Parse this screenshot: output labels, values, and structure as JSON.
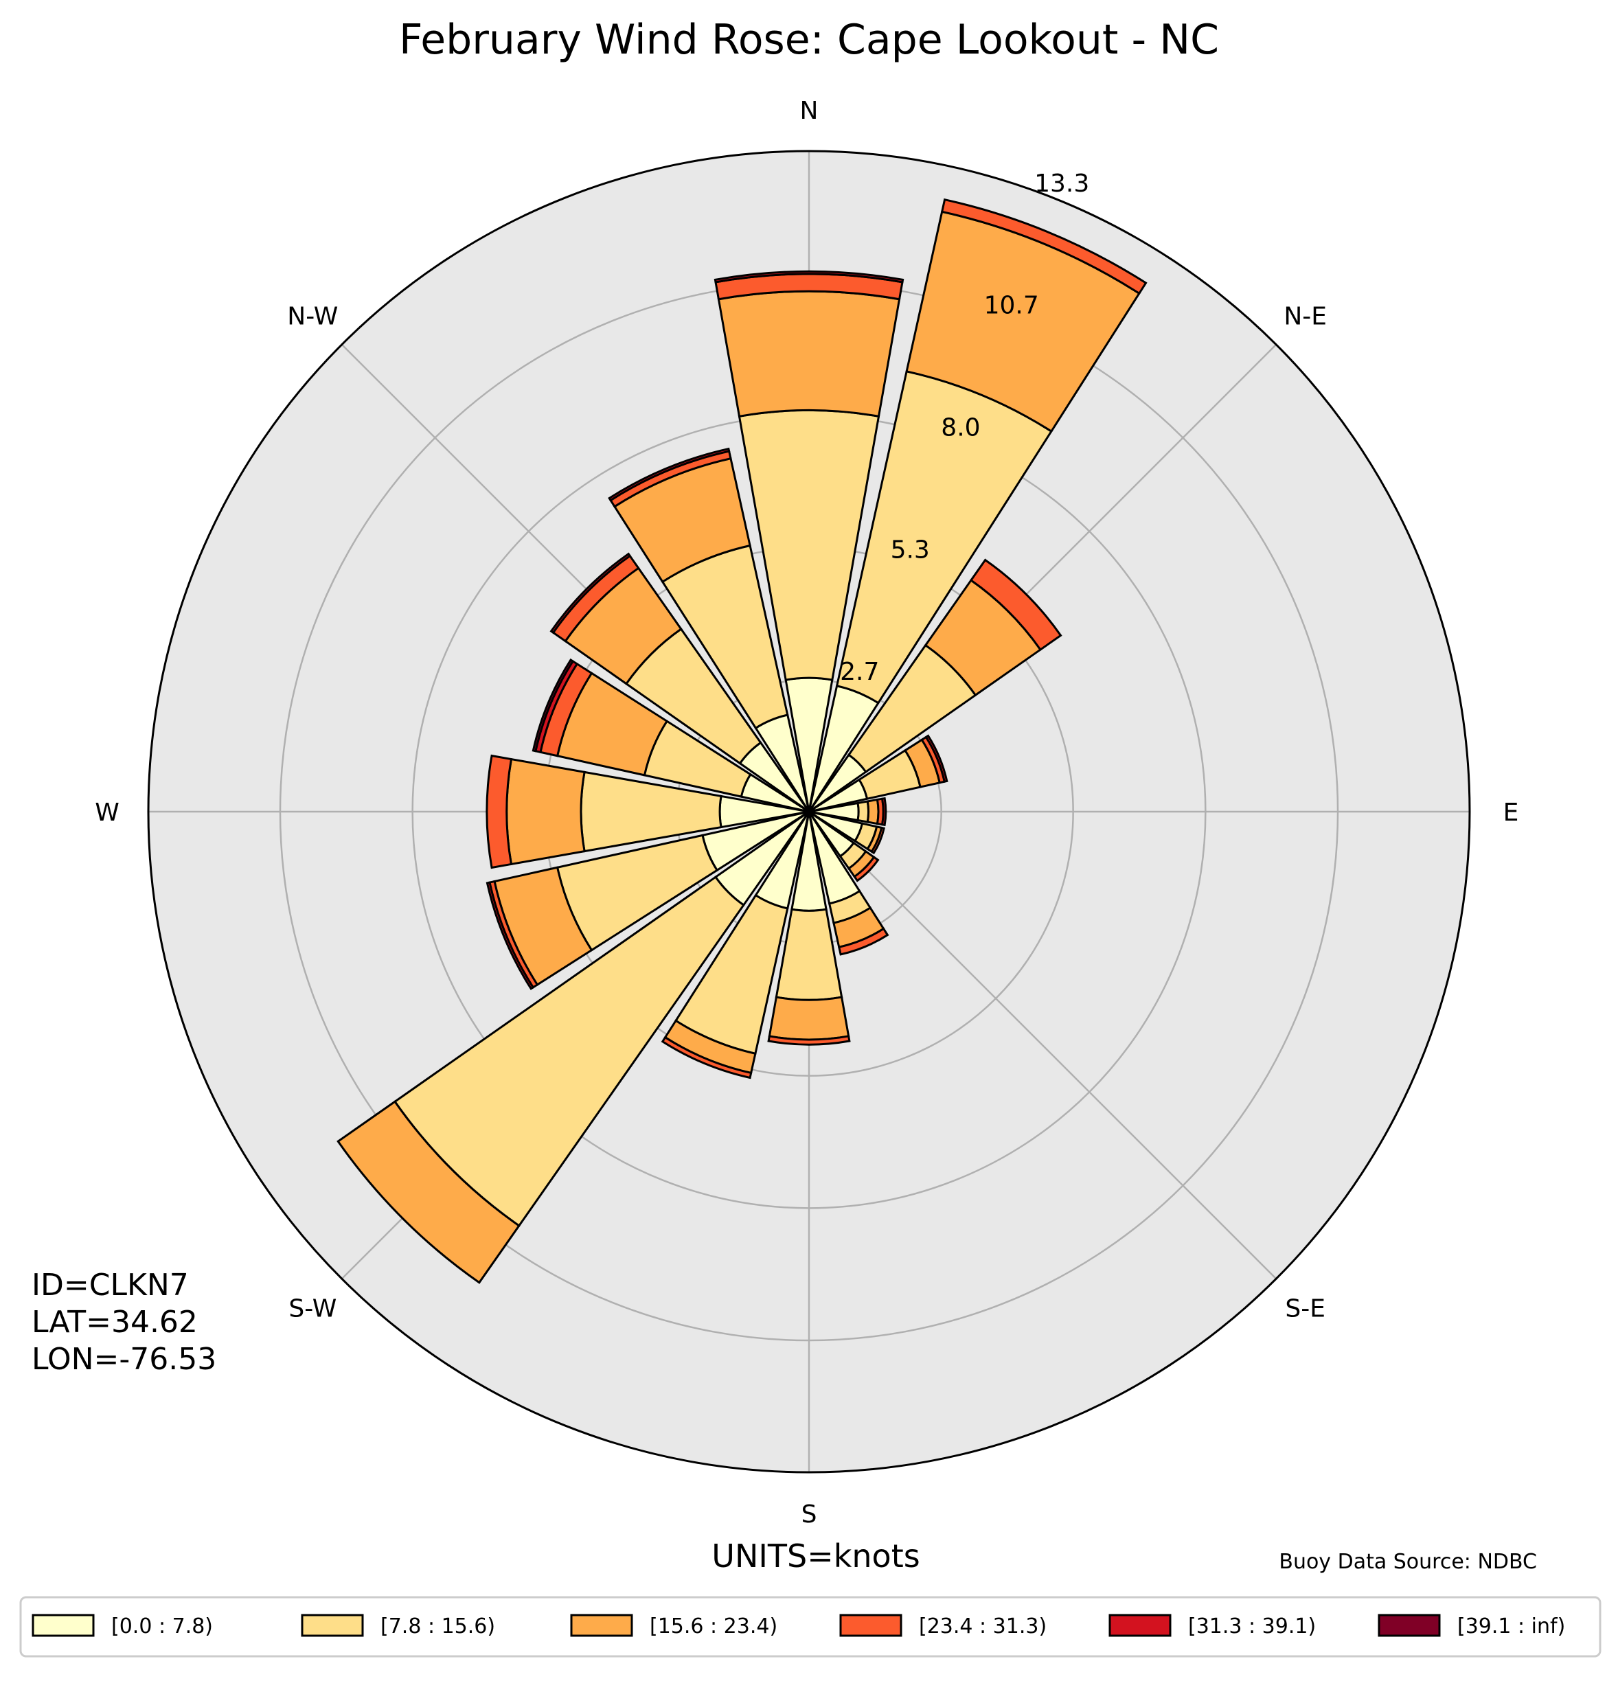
{
  "chart_data": {
    "type": "wind-rose",
    "title": "February Wind Rose: Cape Lookout - NC",
    "direction_labels": [
      "N",
      "N-E",
      "E",
      "S-E",
      "S",
      "S-W",
      "W",
      "N-W"
    ],
    "radial_ticks": [
      "2.7",
      "5.3",
      "8.0",
      "10.7",
      "13.3"
    ],
    "radial_tick_values": [
      2.67,
      5.33,
      8.0,
      10.67,
      13.33
    ],
    "rmax": 13.33,
    "sector_width_deg": 20,
    "bins": [
      "[0.0 : 7.8)",
      "[7.8 : 15.6)",
      "[15.6 : 23.4)",
      "[23.4 : 31.3)",
      "[31.3 : 39.1)",
      "[39.1 : inf)"
    ],
    "colors": [
      "#ffffcc",
      "#fede89",
      "#feab4a",
      "#fc5b2d",
      "#d3121f",
      "#800026"
    ],
    "sectors": [
      {
        "direction": 0,
        "values": [
          2.7,
          5.4,
          2.4,
          0.35,
          0.05,
          0
        ]
      },
      {
        "direction": 22.5,
        "values": [
          2.6,
          6.5,
          3.3,
          0.25,
          0,
          0
        ]
      },
      {
        "direction": 45,
        "values": [
          1.4,
          2.7,
          1.6,
          0.5,
          0,
          0
        ]
      },
      {
        "direction": 67.5,
        "values": [
          1.2,
          1.1,
          0.4,
          0.1,
          0.05,
          0
        ]
      },
      {
        "direction": 90,
        "values": [
          1.0,
          0.2,
          0.2,
          0.1,
          0.05,
          0
        ]
      },
      {
        "direction": 112.5,
        "values": [
          1.1,
          0.3,
          0.1,
          0.05,
          0,
          0
        ]
      },
      {
        "direction": 135,
        "values": [
          1.1,
          0.3,
          0.2,
          0.1,
          0,
          0
        ]
      },
      {
        "direction": 157.5,
        "values": [
          1.9,
          0.4,
          0.5,
          0.15,
          0,
          0
        ]
      },
      {
        "direction": 180,
        "values": [
          2.0,
          1.8,
          0.8,
          0.1,
          0,
          0
        ]
      },
      {
        "direction": 202.5,
        "values": [
          2.0,
          3.0,
          0.4,
          0.1,
          0,
          0
        ]
      },
      {
        "direction": 225,
        "values": [
          2.3,
          7.9,
          1.4,
          0,
          0,
          0
        ]
      },
      {
        "direction": 247.5,
        "values": [
          2.2,
          3.0,
          1.3,
          0.1,
          0.05,
          0
        ]
      },
      {
        "direction": 270,
        "values": [
          1.8,
          2.8,
          1.5,
          0.4,
          0,
          0
        ]
      },
      {
        "direction": 292.5,
        "values": [
          1.4,
          2.0,
          1.8,
          0.35,
          0.1,
          0.05
        ]
      },
      {
        "direction": 315,
        "values": [
          1.7,
          2.8,
          1.5,
          0.3,
          0.05,
          0
        ]
      },
      {
        "direction": 337.5,
        "values": [
          2.0,
          3.5,
          1.8,
          0.15,
          0.05,
          0
        ]
      }
    ]
  },
  "info": {
    "id": "ID=CLKN7",
    "lat": "LAT=34.62",
    "lon": "LON=-76.53"
  },
  "units": "UNITS=knots",
  "source": "Buoy Data Source: NDBC"
}
